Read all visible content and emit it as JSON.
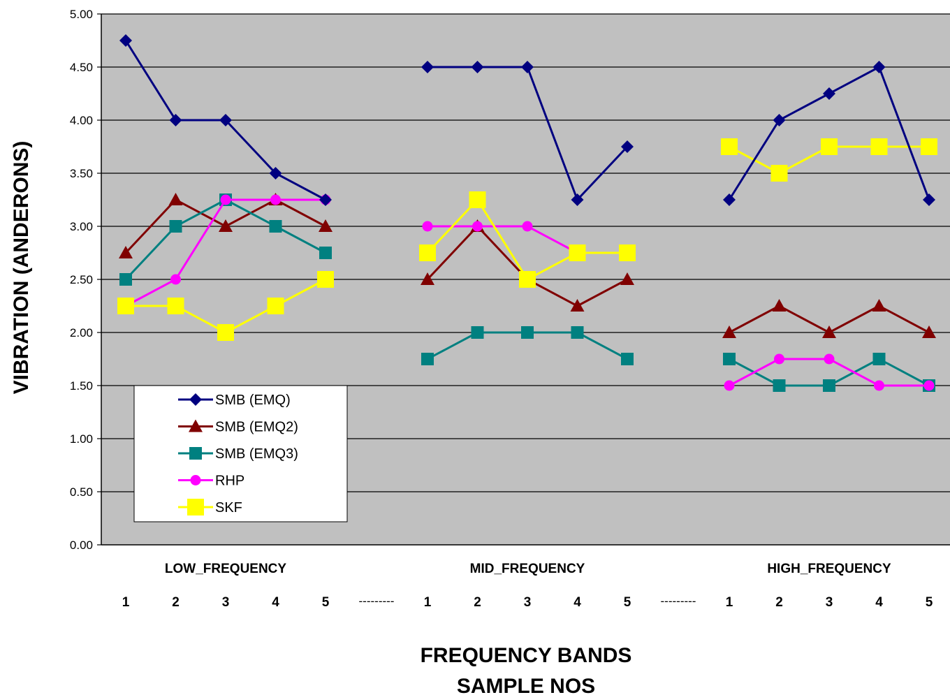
{
  "chart_data": {
    "type": "line",
    "ylabel": "VIBRATION (ANDERONS)",
    "xlabel_lines": [
      "FREQUENCY BANDS",
      "SAMPLE NOS"
    ],
    "ylim": [
      0,
      5
    ],
    "yticks": [
      "0.00",
      "0.50",
      "1.00",
      "1.50",
      "2.00",
      "2.50",
      "3.00",
      "3.50",
      "4.00",
      "4.50",
      "5.00"
    ],
    "grid": true,
    "legend_position": "bottom-left",
    "bands": [
      "LOW_FREQUENCY",
      "MID_FREQUENCY",
      "HIGH_FREQUENCY"
    ],
    "separator": "---------",
    "categories": [
      "1",
      "2",
      "3",
      "4",
      "5",
      "1",
      "2",
      "3",
      "4",
      "5",
      "1",
      "2",
      "3",
      "4",
      "5"
    ],
    "series": [
      {
        "name": "SMB (EMQ)",
        "color": "#000080",
        "marker": "diamond",
        "values": [
          [
            4.75,
            4.0,
            4.0,
            3.5,
            3.25
          ],
          [
            4.5,
            4.5,
            4.5,
            3.25,
            3.75
          ],
          [
            3.25,
            4.0,
            4.25,
            4.5,
            3.25
          ]
        ]
      },
      {
        "name": "SMB (EMQ2)",
        "color": "#800000",
        "marker": "triangle",
        "values": [
          [
            2.75,
            3.25,
            3.0,
            3.25,
            3.0
          ],
          [
            2.5,
            3.0,
            2.5,
            2.25,
            2.5
          ],
          [
            2.0,
            2.25,
            2.0,
            2.25,
            2.0
          ]
        ]
      },
      {
        "name": "SMB (EMQ3)",
        "color": "#008080",
        "marker": "square",
        "values": [
          [
            2.5,
            3.0,
            3.25,
            3.0,
            2.75
          ],
          [
            1.75,
            2.0,
            2.0,
            2.0,
            1.75
          ],
          [
            1.75,
            1.5,
            1.5,
            1.75,
            1.5
          ]
        ]
      },
      {
        "name": "RHP",
        "color": "#ff00ff",
        "marker": "circle",
        "values": [
          [
            2.25,
            2.5,
            3.25,
            3.25,
            3.25
          ],
          [
            3.0,
            3.0,
            3.0,
            2.75,
            2.75
          ],
          [
            1.5,
            1.75,
            1.75,
            1.5,
            1.5
          ]
        ]
      },
      {
        "name": "SKF",
        "color": "#ffff00",
        "marker": "bigsquare",
        "values": [
          [
            2.25,
            2.25,
            2.0,
            2.25,
            2.5
          ],
          [
            2.75,
            3.25,
            2.5,
            2.75,
            2.75
          ],
          [
            3.75,
            3.5,
            3.75,
            3.75,
            3.75
          ]
        ]
      }
    ]
  }
}
